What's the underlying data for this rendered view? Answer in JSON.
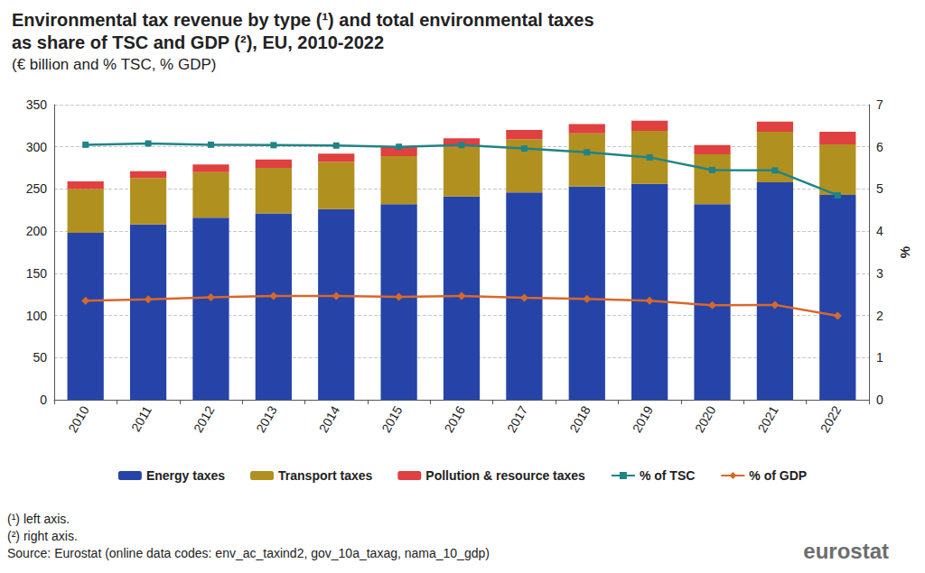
{
  "chart_data": {
    "type": "bar",
    "title": "Environmental tax revenue by type (¹) and total environmental taxes\nas share of TSC and GDP (²), EU, 2010-2022",
    "subtitle": "(€ billion and % TSC, % GDP)",
    "y2_label": "%",
    "annotations": [
      "(¹) left axis.",
      "(²) right axis.",
      "Source: Eurostat (online data codes: env_ac_taxind2, gov_10a_taxag, nama_10_gdp)",
      "eurostat"
    ],
    "categories": [
      "2010",
      "2011",
      "2012",
      "2013",
      "2014",
      "2015",
      "2016",
      "2017",
      "2018",
      "2019",
      "2020",
      "2021",
      "2022"
    ],
    "stacked": true,
    "grid": true,
    "legend": "bottom",
    "ylim": [
      0,
      350
    ],
    "yticks": [
      0,
      50,
      100,
      150,
      200,
      250,
      300,
      350
    ],
    "y2lim": [
      0,
      7
    ],
    "y2ticks": [
      0,
      1,
      2,
      3,
      4,
      5,
      6,
      7
    ],
    "series": [
      {
        "name": "Energy taxes",
        "type": "bar",
        "color": "#2644A7",
        "values": [
          198,
          208,
          216,
          221,
          226,
          232,
          241,
          246,
          253,
          256,
          232,
          258,
          243
        ]
      },
      {
        "name": "Transport taxes",
        "type": "bar",
        "color": "#B09120",
        "values": [
          52,
          55,
          54,
          54,
          56,
          57,
          59,
          63,
          63,
          63,
          59,
          60,
          60
        ]
      },
      {
        "name": "Pollution & resource taxes",
        "type": "bar",
        "color": "#E04040",
        "values": [
          9,
          8,
          9,
          10,
          10,
          11,
          10,
          11,
          11,
          12,
          11,
          12,
          15
        ]
      },
      {
        "name": "% of TSC",
        "type": "line",
        "axis": "y2",
        "color": "#208486",
        "marker": "square",
        "values": [
          6.05,
          6.08,
          6.05,
          6.04,
          6.03,
          6.0,
          6.04,
          5.96,
          5.87,
          5.75,
          5.45,
          5.44,
          4.85
        ]
      },
      {
        "name": "% of GDP",
        "type": "line",
        "axis": "y2",
        "color": "#D8682A",
        "marker": "diamond",
        "values": [
          2.35,
          2.38,
          2.43,
          2.46,
          2.46,
          2.44,
          2.46,
          2.42,
          2.39,
          2.35,
          2.24,
          2.25,
          1.99
        ]
      }
    ]
  }
}
